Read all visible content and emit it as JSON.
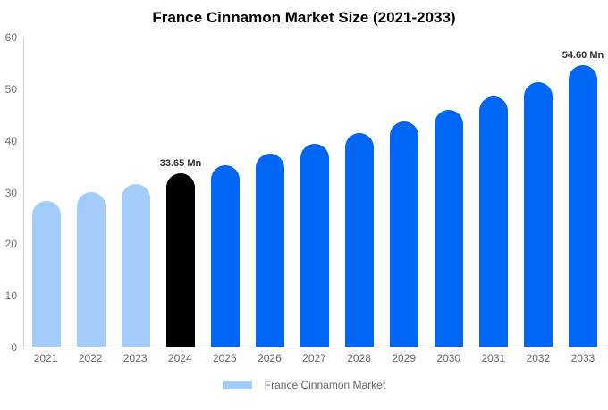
{
  "title": "France Cinnamon Market Size (2021-2033)",
  "legend": {
    "label": "France Cinnamon Market",
    "swatch_color": "#A3CDF8"
  },
  "colors": {
    "historical_bar": "#A3CDF8",
    "base_year_bar": "#000000",
    "forecast_bar": "#0066F5",
    "axis_line": "#D5D5D5",
    "tick_label": "#6E6E6E",
    "data_label": "#2F2F2F",
    "background": "#FFFFFF"
  },
  "chart_data": {
    "type": "bar",
    "title": "France Cinnamon Market Size (2021-2033)",
    "xlabel": "",
    "ylabel": "",
    "unit": "Mn",
    "categories": [
      "2021",
      "2022",
      "2023",
      "2024",
      "2025",
      "2026",
      "2027",
      "2028",
      "2029",
      "2030",
      "2031",
      "2032",
      "2033"
    ],
    "values": [
      28.2,
      30.0,
      31.5,
      33.65,
      35.2,
      37.4,
      39.3,
      41.5,
      43.7,
      46.0,
      48.5,
      51.3,
      54.6
    ],
    "bar_colors": [
      "#A3CDF8",
      "#A3CDF8",
      "#A3CDF8",
      "#000000",
      "#0066F5",
      "#0066F5",
      "#0066F5",
      "#0066F5",
      "#0066F5",
      "#0066F5",
      "#0066F5",
      "#0066F5",
      "#0066F5"
    ],
    "point_labels": [
      "",
      "",
      "",
      "33.65 Mn",
      "",
      "",
      "",
      "",
      "",
      "",
      "",
      "",
      "54.60 Mn"
    ],
    "ylim": [
      0,
      60
    ],
    "yticks": [
      0,
      10,
      20,
      30,
      40,
      50,
      60
    ],
    "grid": false,
    "legend_position": "bottom",
    "legend_entries": [
      "France Cinnamon Market"
    ]
  }
}
